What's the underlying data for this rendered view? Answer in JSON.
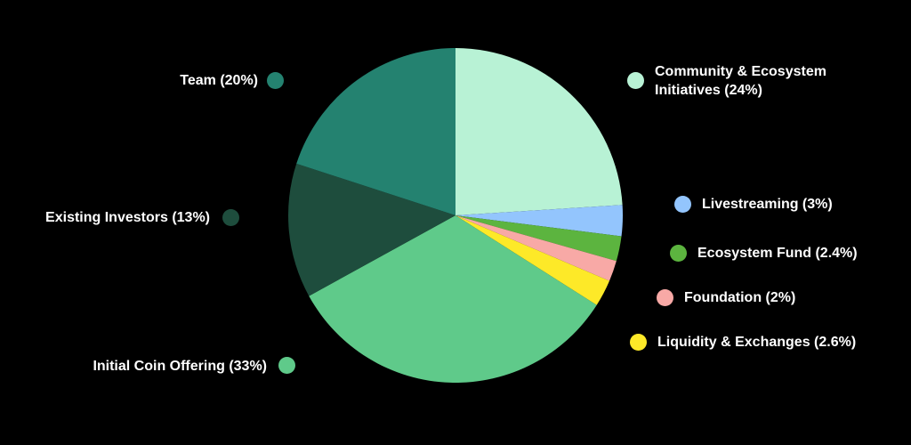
{
  "chart_data": {
    "type": "pie",
    "title": "",
    "start_angle_deg": 0,
    "direction": "clockwise",
    "slices": [
      {
        "label": "Community & Ecosystem Initiatives (24%)",
        "label_lines": [
          "Community & Ecosystem",
          "Initiatives (24%)"
        ],
        "value": 24,
        "color": "#b8f2d5"
      },
      {
        "label": "Livestreaming (3%)",
        "value": 3,
        "color": "#93c5fd"
      },
      {
        "label": "Ecosystem Fund (2.4%)",
        "value": 2.4,
        "color": "#5cb43f"
      },
      {
        "label": "Foundation (2%)",
        "value": 2,
        "color": "#f8a9a6"
      },
      {
        "label": "Liquidity & Exchanges (2.6%)",
        "value": 2.6,
        "color": "#fde928"
      },
      {
        "label": "Initial Coin Offering (33%)",
        "value": 33,
        "color": "#5fca8a"
      },
      {
        "label": "Existing Investors (13%)",
        "value": 13,
        "color": "#1e4d3d"
      },
      {
        "label": "Team (20%)",
        "value": 20,
        "color": "#248270"
      }
    ],
    "background": "#000000",
    "legend_placement": "around"
  }
}
